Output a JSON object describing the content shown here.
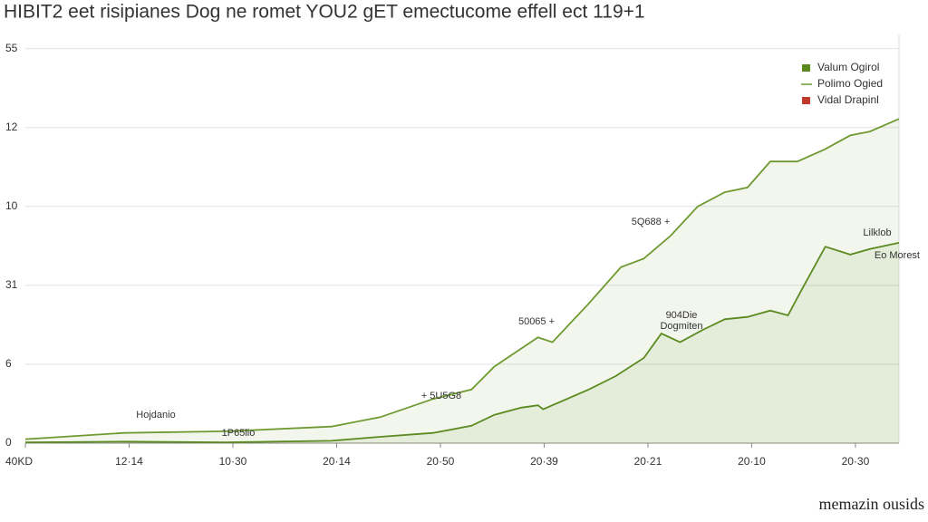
{
  "chart_data": {
    "type": "line",
    "title": "HIBIT2 eet risipianes Dog ne romet YOU2 gET emectucome effell ect 119+1",
    "watermark": "memazin ousids",
    "xlim": [
      0,
      8.42
    ],
    "xticks": [
      {
        "value": 0,
        "label": "40KD"
      },
      {
        "value": 1,
        "label": "12·14"
      },
      {
        "value": 2,
        "label": "10·30"
      },
      {
        "value": 3,
        "label": "20·14"
      },
      {
        "value": 4,
        "label": "20·50"
      },
      {
        "value": 5,
        "label": "20·39"
      },
      {
        "value": 6,
        "label": "20·21"
      },
      {
        "value": 7,
        "label": "20·10"
      },
      {
        "value": 8,
        "label": "20·30"
      }
    ],
    "ylim": [
      0,
      5.18
    ],
    "yticks": [
      {
        "value": 0,
        "label": "0"
      },
      {
        "value": 1,
        "label": "6"
      },
      {
        "value": 2,
        "label": "31"
      },
      {
        "value": 3,
        "label": "10"
      },
      {
        "value": 4,
        "label": "12"
      },
      {
        "value": 5,
        "label": "55"
      }
    ],
    "grid": true,
    "legend": "upper right",
    "series": [
      {
        "name": "Valum Ogirol",
        "color": "#5a8a1e",
        "fill": true,
        "x": [
          0,
          0.95,
          1.94,
          2.95,
          3.42,
          3.93,
          4.3,
          4.52,
          4.78,
          4.94,
          4.99,
          5.43,
          5.69,
          5.96,
          6.13,
          6.31,
          6.52,
          6.74,
          6.96,
          7.18,
          7.35,
          7.48,
          7.71,
          7.95,
          8.14,
          8.42
        ],
        "values": [
          0.01,
          0.02,
          0.01,
          0.03,
          0.08,
          0.13,
          0.22,
          0.36,
          0.45,
          0.48,
          0.43,
          0.68,
          0.85,
          1.08,
          1.39,
          1.28,
          1.43,
          1.57,
          1.6,
          1.68,
          1.62,
          1.94,
          2.49,
          2.39,
          2.46,
          2.54
        ]
      },
      {
        "name": "Polimo Ogied",
        "color": "#6f9a32",
        "fill": true,
        "x": [
          0,
          0.95,
          1.94,
          2.95,
          3.42,
          3.93,
          4.3,
          4.52,
          4.78,
          4.94,
          5.08,
          5.43,
          5.74,
          5.96,
          6.22,
          6.48,
          6.74,
          6.96,
          7.18,
          7.44,
          7.7,
          7.95,
          8.14,
          8.42
        ],
        "values": [
          0.05,
          0.13,
          0.15,
          0.21,
          0.33,
          0.56,
          0.68,
          0.97,
          1.2,
          1.34,
          1.28,
          1.77,
          2.23,
          2.34,
          2.63,
          3.0,
          3.18,
          3.24,
          3.57,
          3.57,
          3.72,
          3.9,
          3.95,
          4.11
        ]
      },
      {
        "name": "Vidal Drapinl",
        "color": "#c0392b",
        "fill": false,
        "x": [
          0
        ],
        "values": [
          null
        ]
      }
    ],
    "annotations": [
      "Hojdanio",
      "1P65lio",
      "+ 5U5G8",
      "50065 +",
      "904Die",
      "Dogmiten",
      "5Q688 +",
      "Lilklob",
      "Eo Morest"
    ]
  }
}
